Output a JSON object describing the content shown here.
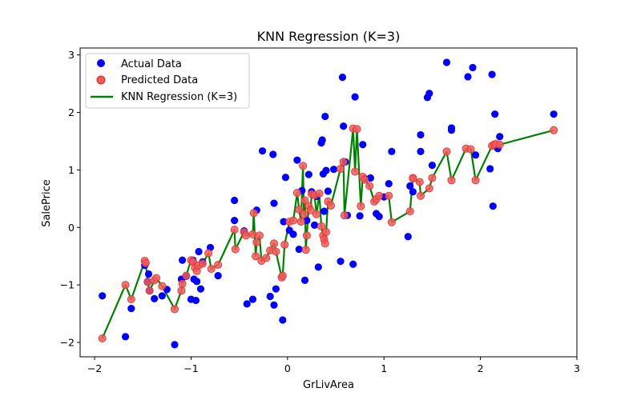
{
  "chart_data": {
    "type": "scatter",
    "title": "KNN Regression (K=3)",
    "xlabel": "GrLivArea",
    "ylabel": "SalePrice",
    "xlim": [
      -2.15,
      3.0
    ],
    "ylim": [
      -2.25,
      3.12
    ],
    "xticks": [
      -2,
      -1,
      0,
      1,
      2,
      3
    ],
    "yticks": [
      -2,
      -1,
      0,
      1,
      2,
      3
    ],
    "grid": false,
    "legend_position": "top-left",
    "series": [
      {
        "name": "Actual Data",
        "kind": "scatter",
        "color": "#0000ff",
        "points": [
          [
            -1.92,
            -1.19
          ],
          [
            -1.68,
            -1.9
          ],
          [
            -1.62,
            -1.41
          ],
          [
            -1.48,
            -0.66
          ],
          [
            -1.45,
            -0.94
          ],
          [
            -1.44,
            -0.81
          ],
          [
            -1.43,
            -1.1
          ],
          [
            -1.38,
            -1.24
          ],
          [
            -1.3,
            -1.19
          ],
          [
            -1.25,
            -1.08
          ],
          [
            -1.17,
            -2.04
          ],
          [
            -1.1,
            -0.9
          ],
          [
            -1.09,
            -0.57
          ],
          [
            -1.05,
            -0.85
          ],
          [
            -1.0,
            -1.25
          ],
          [
            -0.98,
            -0.57
          ],
          [
            -0.97,
            -0.9
          ],
          [
            -0.95,
            -1.27
          ],
          [
            -0.94,
            -0.94
          ],
          [
            -0.92,
            -0.42
          ],
          [
            -0.9,
            -1.07
          ],
          [
            -0.88,
            -0.6
          ],
          [
            -0.8,
            -0.35
          ],
          [
            -0.72,
            -0.84
          ],
          [
            -0.55,
            0.47
          ],
          [
            -0.55,
            0.12
          ],
          [
            -0.45,
            -0.06
          ],
          [
            -0.42,
            -1.33
          ],
          [
            -0.36,
            -1.25
          ],
          [
            -0.32,
            0.3
          ],
          [
            -0.26,
            1.33
          ],
          [
            -0.18,
            -1.2
          ],
          [
            -0.15,
            1.27
          ],
          [
            -0.14,
            0.42
          ],
          [
            -0.14,
            -1.35
          ],
          [
            -0.12,
            -1.07
          ],
          [
            -0.05,
            -1.61
          ],
          [
            -0.04,
            0.1
          ],
          [
            -0.02,
            0.87
          ],
          [
            0.02,
            -0.05
          ],
          [
            0.06,
            -0.12
          ],
          [
            0.1,
            1.17
          ],
          [
            0.12,
            -0.38
          ],
          [
            0.15,
            0.64
          ],
          [
            0.18,
            -0.92
          ],
          [
            0.2,
            0.12
          ],
          [
            0.22,
            0.92
          ],
          [
            0.25,
            0.62
          ],
          [
            0.28,
            0.04
          ],
          [
            0.3,
            0.54
          ],
          [
            0.32,
            -0.69
          ],
          [
            0.35,
            1.47
          ],
          [
            0.36,
            1.52
          ],
          [
            0.37,
            0.93
          ],
          [
            0.38,
            0.28
          ],
          [
            0.39,
            1.93
          ],
          [
            0.4,
            0.99
          ],
          [
            0.42,
            0.63
          ],
          [
            0.48,
            1.01
          ],
          [
            0.55,
            -0.59
          ],
          [
            0.57,
            2.61
          ],
          [
            0.58,
            1.76
          ],
          [
            0.6,
            1.14
          ],
          [
            0.62,
            0.21
          ],
          [
            0.68,
            -0.64
          ],
          [
            0.7,
            2.27
          ],
          [
            0.75,
            0.2
          ],
          [
            0.78,
            1.44
          ],
          [
            0.8,
            0.85
          ],
          [
            0.86,
            0.86
          ],
          [
            0.92,
            0.24
          ],
          [
            0.95,
            0.19
          ],
          [
            1.0,
            0.53
          ],
          [
            1.05,
            0.76
          ],
          [
            1.08,
            1.32
          ],
          [
            1.25,
            -0.16
          ],
          [
            1.27,
            0.72
          ],
          [
            1.3,
            0.62
          ],
          [
            1.38,
            1.61
          ],
          [
            1.38,
            1.32
          ],
          [
            1.45,
            2.26
          ],
          [
            1.47,
            2.33
          ],
          [
            1.5,
            1.08
          ],
          [
            1.65,
            2.87
          ],
          [
            1.7,
            1.73
          ],
          [
            1.7,
            1.69
          ],
          [
            1.87,
            2.62
          ],
          [
            1.92,
            2.78
          ],
          [
            1.95,
            1.26
          ],
          [
            2.1,
            1.02
          ],
          [
            2.12,
            2.66
          ],
          [
            2.13,
            0.37
          ],
          [
            2.15,
            1.97
          ],
          [
            2.18,
            1.37
          ],
          [
            2.2,
            1.58
          ],
          [
            2.76,
            1.97
          ]
        ]
      },
      {
        "name": "Predicted Data",
        "kind": "scatter",
        "color": "#f25a5a",
        "points": [
          [
            -1.92,
            -1.93
          ],
          [
            -1.68,
            -1.0
          ],
          [
            -1.62,
            -1.25
          ],
          [
            -1.48,
            -0.58
          ],
          [
            -1.47,
            -0.62
          ],
          [
            -1.45,
            -0.95
          ],
          [
            -1.43,
            -1.1
          ],
          [
            -1.38,
            -0.92
          ],
          [
            -1.36,
            -0.88
          ],
          [
            -1.3,
            -1.02
          ],
          [
            -1.17,
            -1.42
          ],
          [
            -1.1,
            -1.1
          ],
          [
            -1.09,
            -0.98
          ],
          [
            -1.05,
            -0.84
          ],
          [
            -1.0,
            -0.57
          ],
          [
            -0.98,
            -0.6
          ],
          [
            -0.96,
            -0.7
          ],
          [
            -0.94,
            -0.76
          ],
          [
            -0.92,
            -0.66
          ],
          [
            -0.88,
            -0.63
          ],
          [
            -0.82,
            -0.45
          ],
          [
            -0.79,
            -0.72
          ],
          [
            -0.72,
            -0.65
          ],
          [
            -0.55,
            -0.04
          ],
          [
            -0.54,
            -0.38
          ],
          [
            -0.45,
            -0.08
          ],
          [
            -0.43,
            -0.14
          ],
          [
            -0.36,
            -0.12
          ],
          [
            -0.35,
            0.25
          ],
          [
            -0.33,
            -0.5
          ],
          [
            -0.32,
            -0.26
          ],
          [
            -0.29,
            -0.14
          ],
          [
            -0.27,
            -0.58
          ],
          [
            -0.22,
            -0.53
          ],
          [
            -0.18,
            -0.4
          ],
          [
            -0.14,
            -0.28
          ],
          [
            -0.12,
            -0.42
          ],
          [
            -0.06,
            -0.87
          ],
          [
            -0.05,
            -0.84
          ],
          [
            -0.03,
            -0.3
          ],
          [
            0.02,
            0.1
          ],
          [
            0.06,
            0.12
          ],
          [
            0.1,
            0.6
          ],
          [
            0.12,
            0.31
          ],
          [
            0.14,
            0.1
          ],
          [
            0.16,
            1.07
          ],
          [
            0.17,
            0.23
          ],
          [
            0.18,
            0.47
          ],
          [
            0.19,
            -0.39
          ],
          [
            0.2,
            -0.14
          ],
          [
            0.22,
            0.37
          ],
          [
            0.24,
            0.3
          ],
          [
            0.25,
            0.58
          ],
          [
            0.28,
            0.56
          ],
          [
            0.3,
            0.23
          ],
          [
            0.33,
            0.59
          ],
          [
            0.35,
            0.02
          ],
          [
            0.37,
            -0.14
          ],
          [
            0.38,
            -0.21
          ],
          [
            0.39,
            -0.28
          ],
          [
            0.4,
            -0.08
          ],
          [
            0.42,
            0.45
          ],
          [
            0.45,
            0.38
          ],
          [
            0.55,
            1.02
          ],
          [
            0.58,
            1.14
          ],
          [
            0.59,
            0.21
          ],
          [
            0.68,
            1.72
          ],
          [
            0.7,
            0.97
          ],
          [
            0.72,
            1.71
          ],
          [
            0.76,
            0.37
          ],
          [
            0.78,
            0.88
          ],
          [
            0.8,
            0.83
          ],
          [
            0.85,
            0.72
          ],
          [
            0.9,
            0.45
          ],
          [
            0.92,
            0.49
          ],
          [
            0.95,
            0.55
          ],
          [
            1.05,
            0.55
          ],
          [
            1.08,
            0.09
          ],
          [
            1.27,
            0.28
          ],
          [
            1.3,
            0.86
          ],
          [
            1.3,
            0.85
          ],
          [
            1.37,
            0.79
          ],
          [
            1.38,
            0.55
          ],
          [
            1.47,
            0.68
          ],
          [
            1.5,
            0.86
          ],
          [
            1.65,
            1.32
          ],
          [
            1.7,
            0.82
          ],
          [
            1.85,
            1.37
          ],
          [
            1.9,
            1.36
          ],
          [
            1.95,
            0.82
          ],
          [
            2.12,
            1.42
          ],
          [
            2.14,
            1.44
          ],
          [
            2.16,
            1.45
          ],
          [
            2.2,
            1.44
          ],
          [
            2.76,
            1.69
          ]
        ]
      },
      {
        "name": "KNN Regression (K=3)",
        "kind": "line",
        "color": "#008000",
        "points": [
          [
            -1.92,
            -1.93
          ],
          [
            -1.68,
            -1.0
          ],
          [
            -1.62,
            -1.25
          ],
          [
            -1.48,
            -0.58
          ],
          [
            -1.47,
            -0.62
          ],
          [
            -1.45,
            -0.95
          ],
          [
            -1.43,
            -1.1
          ],
          [
            -1.38,
            -0.92
          ],
          [
            -1.36,
            -0.88
          ],
          [
            -1.3,
            -1.02
          ],
          [
            -1.17,
            -1.42
          ],
          [
            -1.1,
            -1.1
          ],
          [
            -1.09,
            -0.98
          ],
          [
            -1.05,
            -0.84
          ],
          [
            -1.0,
            -0.57
          ],
          [
            -0.98,
            -0.6
          ],
          [
            -0.96,
            -0.7
          ],
          [
            -0.94,
            -0.76
          ],
          [
            -0.92,
            -0.66
          ],
          [
            -0.88,
            -0.63
          ],
          [
            -0.82,
            -0.45
          ],
          [
            -0.79,
            -0.72
          ],
          [
            -0.72,
            -0.65
          ],
          [
            -0.55,
            -0.04
          ],
          [
            -0.54,
            -0.38
          ],
          [
            -0.45,
            -0.08
          ],
          [
            -0.43,
            -0.14
          ],
          [
            -0.36,
            -0.12
          ],
          [
            -0.35,
            0.25
          ],
          [
            -0.33,
            -0.5
          ],
          [
            -0.32,
            -0.26
          ],
          [
            -0.29,
            -0.14
          ],
          [
            -0.27,
            -0.58
          ],
          [
            -0.22,
            -0.53
          ],
          [
            -0.18,
            -0.4
          ],
          [
            -0.14,
            -0.28
          ],
          [
            -0.12,
            -0.42
          ],
          [
            -0.06,
            -0.87
          ],
          [
            -0.05,
            -0.84
          ],
          [
            -0.03,
            -0.3
          ],
          [
            0.02,
            0.1
          ],
          [
            0.06,
            0.12
          ],
          [
            0.1,
            0.6
          ],
          [
            0.12,
            0.31
          ],
          [
            0.14,
            0.1
          ],
          [
            0.16,
            1.07
          ],
          [
            0.17,
            0.23
          ],
          [
            0.18,
            0.47
          ],
          [
            0.19,
            -0.39
          ],
          [
            0.2,
            -0.14
          ],
          [
            0.22,
            0.37
          ],
          [
            0.24,
            0.3
          ],
          [
            0.25,
            0.58
          ],
          [
            0.28,
            0.56
          ],
          [
            0.3,
            0.23
          ],
          [
            0.33,
            0.59
          ],
          [
            0.35,
            0.02
          ],
          [
            0.37,
            -0.14
          ],
          [
            0.38,
            -0.21
          ],
          [
            0.39,
            -0.28
          ],
          [
            0.4,
            -0.08
          ],
          [
            0.42,
            0.45
          ],
          [
            0.45,
            0.38
          ],
          [
            0.55,
            1.02
          ],
          [
            0.58,
            1.14
          ],
          [
            0.59,
            0.21
          ],
          [
            0.68,
            1.72
          ],
          [
            0.7,
            0.97
          ],
          [
            0.72,
            1.71
          ],
          [
            0.76,
            0.37
          ],
          [
            0.78,
            0.88
          ],
          [
            0.8,
            0.83
          ],
          [
            0.85,
            0.72
          ],
          [
            0.9,
            0.45
          ],
          [
            0.92,
            0.49
          ],
          [
            0.95,
            0.55
          ],
          [
            1.05,
            0.55
          ],
          [
            1.08,
            0.09
          ],
          [
            1.27,
            0.28
          ],
          [
            1.3,
            0.86
          ],
          [
            1.3,
            0.85
          ],
          [
            1.37,
            0.79
          ],
          [
            1.38,
            0.55
          ],
          [
            1.47,
            0.68
          ],
          [
            1.5,
            0.86
          ],
          [
            1.65,
            1.32
          ],
          [
            1.7,
            0.82
          ],
          [
            1.85,
            1.37
          ],
          [
            1.9,
            1.36
          ],
          [
            1.95,
            0.82
          ],
          [
            2.12,
            1.42
          ],
          [
            2.14,
            1.44
          ],
          [
            2.16,
            1.45
          ],
          [
            2.2,
            1.44
          ],
          [
            2.76,
            1.69
          ]
        ]
      }
    ]
  }
}
